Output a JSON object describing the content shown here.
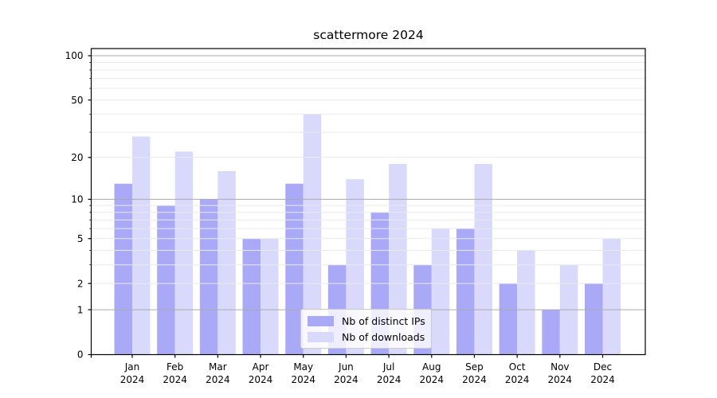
{
  "chart_data": {
    "type": "bar",
    "title": "scattermore 2024",
    "categories": [
      "Jan",
      "Feb",
      "Mar",
      "Apr",
      "May",
      "Jun",
      "Jul",
      "Aug",
      "Sep",
      "Oct",
      "Nov",
      "Dec"
    ],
    "category_year": "2024",
    "series": [
      {
        "name": "Nb of distinct IPs",
        "color": "#a9a9f8",
        "values": [
          13,
          9,
          10,
          5,
          13,
          3,
          8,
          3,
          6,
          2,
          1,
          2
        ]
      },
      {
        "name": "Nb of downloads",
        "color": "#d9d9fb",
        "values": [
          28,
          22,
          16,
          5,
          40,
          14,
          18,
          6,
          18,
          4,
          3,
          5
        ]
      }
    ],
    "yscale": "log1p",
    "ylim": [
      0,
      112
    ],
    "y_ticks": [
      0,
      1,
      2,
      5,
      10,
      20,
      50,
      100
    ],
    "y_major_gridlines": [
      1,
      10,
      100
    ],
    "y_minor_gridlines": [
      2,
      3,
      4,
      5,
      6,
      7,
      8,
      9,
      20,
      30,
      40,
      50,
      60,
      70,
      80,
      90
    ],
    "xlabel": "",
    "ylabel": "",
    "grid": "horizontal-above-bars",
    "legend_position": "inside-bottom-center"
  },
  "colors": {
    "bar_dark": "#a9a9f8",
    "bar_light": "#d9d9fb",
    "grid_major": "#ababab",
    "grid_minor": "#eaeaea",
    "axis": "#000000",
    "background": "#ffffff"
  }
}
